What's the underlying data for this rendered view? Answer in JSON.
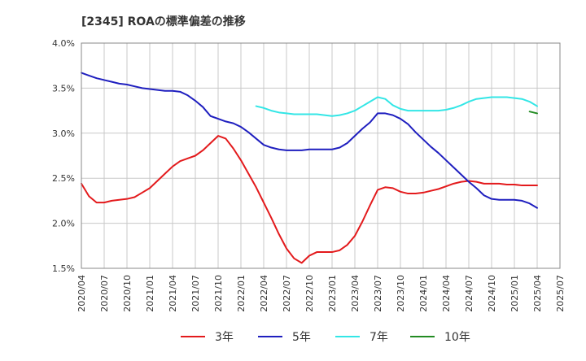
{
  "chart_data": {
    "type": "line",
    "title": "[2345]  ROAの標準偏差の推移",
    "xlabel": "",
    "ylabel": "",
    "x_ticks": [
      "2020/04",
      "2020/07",
      "2020/10",
      "2021/01",
      "2021/04",
      "2021/07",
      "2021/10",
      "2022/01",
      "2022/04",
      "2022/07",
      "2022/10",
      "2023/01",
      "2023/04",
      "2023/07",
      "2023/10",
      "2024/01",
      "2024/04",
      "2024/07",
      "2024/10",
      "2025/01",
      "2025/04",
      "2025/07"
    ],
    "y_ticks": [
      "1.5%",
      "2.0%",
      "2.5%",
      "3.0%",
      "3.5%",
      "4.0%"
    ],
    "ylim": [
      1.5,
      4.0
    ],
    "grid": true,
    "legend_position": "bottom",
    "colors": {
      "3y": "#e31a1c",
      "5y": "#1f1fbf",
      "7y": "#33e6e6",
      "10y": "#228b22"
    },
    "series": [
      {
        "name": "3年",
        "key": "3y",
        "points": [
          [
            "2020/04",
            2.44
          ],
          [
            "2020/05",
            2.3
          ],
          [
            "2020/06",
            2.23
          ],
          [
            "2020/07",
            2.23
          ],
          [
            "2020/08",
            2.25
          ],
          [
            "2020/09",
            2.26
          ],
          [
            "2020/10",
            2.27
          ],
          [
            "2020/11",
            2.29
          ],
          [
            "2020/12",
            2.34
          ],
          [
            "2021/01",
            2.39
          ],
          [
            "2021/02",
            2.47
          ],
          [
            "2021/03",
            2.55
          ],
          [
            "2021/04",
            2.63
          ],
          [
            "2021/05",
            2.69
          ],
          [
            "2021/06",
            2.72
          ],
          [
            "2021/07",
            2.75
          ],
          [
            "2021/08",
            2.81
          ],
          [
            "2021/09",
            2.89
          ],
          [
            "2021/10",
            2.97
          ],
          [
            "2021/11",
            2.94
          ],
          [
            "2021/12",
            2.83
          ],
          [
            "2022/01",
            2.7
          ],
          [
            "2022/02",
            2.55
          ],
          [
            "2022/03",
            2.4
          ],
          [
            "2022/04",
            2.23
          ],
          [
            "2022/05",
            2.06
          ],
          [
            "2022/06",
            1.88
          ],
          [
            "2022/07",
            1.72
          ],
          [
            "2022/08",
            1.61
          ],
          [
            "2022/09",
            1.56
          ],
          [
            "2022/10",
            1.64
          ],
          [
            "2022/11",
            1.68
          ],
          [
            "2022/12",
            1.68
          ],
          [
            "2023/01",
            1.68
          ],
          [
            "2023/02",
            1.7
          ],
          [
            "2023/03",
            1.76
          ],
          [
            "2023/04",
            1.86
          ],
          [
            "2023/05",
            2.02
          ],
          [
            "2023/06",
            2.2
          ],
          [
            "2023/07",
            2.37
          ],
          [
            "2023/08",
            2.4
          ],
          [
            "2023/09",
            2.39
          ],
          [
            "2023/10",
            2.35
          ],
          [
            "2023/11",
            2.33
          ],
          [
            "2023/12",
            2.33
          ],
          [
            "2024/01",
            2.34
          ],
          [
            "2024/02",
            2.36
          ],
          [
            "2024/03",
            2.38
          ],
          [
            "2024/04",
            2.41
          ],
          [
            "2024/05",
            2.44
          ],
          [
            "2024/06",
            2.46
          ],
          [
            "2024/07",
            2.47
          ],
          [
            "2024/08",
            2.46
          ],
          [
            "2024/09",
            2.44
          ],
          [
            "2024/10",
            2.44
          ],
          [
            "2024/11",
            2.44
          ],
          [
            "2024/12",
            2.43
          ],
          [
            "2025/01",
            2.43
          ],
          [
            "2025/02",
            2.42
          ],
          [
            "2025/03",
            2.42
          ],
          [
            "2025/04",
            2.42
          ]
        ]
      },
      {
        "name": "5年",
        "key": "5y",
        "points": [
          [
            "2020/04",
            3.67
          ],
          [
            "2020/05",
            3.64
          ],
          [
            "2020/06",
            3.61
          ],
          [
            "2020/07",
            3.59
          ],
          [
            "2020/08",
            3.57
          ],
          [
            "2020/09",
            3.55
          ],
          [
            "2020/10",
            3.54
          ],
          [
            "2020/11",
            3.52
          ],
          [
            "2020/12",
            3.5
          ],
          [
            "2021/01",
            3.49
          ],
          [
            "2021/02",
            3.48
          ],
          [
            "2021/03",
            3.47
          ],
          [
            "2021/04",
            3.47
          ],
          [
            "2021/05",
            3.46
          ],
          [
            "2021/06",
            3.42
          ],
          [
            "2021/07",
            3.36
          ],
          [
            "2021/08",
            3.29
          ],
          [
            "2021/09",
            3.19
          ],
          [
            "2021/10",
            3.16
          ],
          [
            "2021/11",
            3.13
          ],
          [
            "2021/12",
            3.11
          ],
          [
            "2022/01",
            3.07
          ],
          [
            "2022/02",
            3.01
          ],
          [
            "2022/03",
            2.94
          ],
          [
            "2022/04",
            2.87
          ],
          [
            "2022/05",
            2.84
          ],
          [
            "2022/06",
            2.82
          ],
          [
            "2022/07",
            2.81
          ],
          [
            "2022/08",
            2.81
          ],
          [
            "2022/09",
            2.81
          ],
          [
            "2022/10",
            2.82
          ],
          [
            "2022/11",
            2.82
          ],
          [
            "2022/12",
            2.82
          ],
          [
            "2023/01",
            2.82
          ],
          [
            "2023/02",
            2.84
          ],
          [
            "2023/03",
            2.89
          ],
          [
            "2023/04",
            2.97
          ],
          [
            "2023/05",
            3.05
          ],
          [
            "2023/06",
            3.12
          ],
          [
            "2023/07",
            3.22
          ],
          [
            "2023/08",
            3.22
          ],
          [
            "2023/09",
            3.2
          ],
          [
            "2023/10",
            3.16
          ],
          [
            "2023/11",
            3.1
          ],
          [
            "2023/12",
            3.01
          ],
          [
            "2024/01",
            2.93
          ],
          [
            "2024/02",
            2.85
          ],
          [
            "2024/03",
            2.78
          ],
          [
            "2024/04",
            2.7
          ],
          [
            "2024/05",
            2.62
          ],
          [
            "2024/06",
            2.54
          ],
          [
            "2024/07",
            2.46
          ],
          [
            "2024/08",
            2.39
          ],
          [
            "2024/09",
            2.31
          ],
          [
            "2024/10",
            2.27
          ],
          [
            "2024/11",
            2.26
          ],
          [
            "2024/12",
            2.26
          ],
          [
            "2025/01",
            2.26
          ],
          [
            "2025/02",
            2.25
          ],
          [
            "2025/03",
            2.22
          ],
          [
            "2025/04",
            2.17
          ]
        ]
      },
      {
        "name": "7年",
        "key": "7y",
        "points": [
          [
            "2022/03",
            3.3
          ],
          [
            "2022/04",
            3.28
          ],
          [
            "2022/05",
            3.25
          ],
          [
            "2022/06",
            3.23
          ],
          [
            "2022/07",
            3.22
          ],
          [
            "2022/08",
            3.21
          ],
          [
            "2022/09",
            3.21
          ],
          [
            "2022/10",
            3.21
          ],
          [
            "2022/11",
            3.21
          ],
          [
            "2022/12",
            3.2
          ],
          [
            "2023/01",
            3.19
          ],
          [
            "2023/02",
            3.2
          ],
          [
            "2023/03",
            3.22
          ],
          [
            "2023/04",
            3.25
          ],
          [
            "2023/05",
            3.3
          ],
          [
            "2023/06",
            3.35
          ],
          [
            "2023/07",
            3.4
          ],
          [
            "2023/08",
            3.38
          ],
          [
            "2023/09",
            3.31
          ],
          [
            "2023/10",
            3.27
          ],
          [
            "2023/11",
            3.25
          ],
          [
            "2023/12",
            3.25
          ],
          [
            "2024/01",
            3.25
          ],
          [
            "2024/02",
            3.25
          ],
          [
            "2024/03",
            3.25
          ],
          [
            "2024/04",
            3.26
          ],
          [
            "2024/05",
            3.28
          ],
          [
            "2024/06",
            3.31
          ],
          [
            "2024/07",
            3.35
          ],
          [
            "2024/08",
            3.38
          ],
          [
            "2024/09",
            3.39
          ],
          [
            "2024/10",
            3.4
          ],
          [
            "2024/11",
            3.4
          ],
          [
            "2024/12",
            3.4
          ],
          [
            "2025/01",
            3.39
          ],
          [
            "2025/02",
            3.38
          ],
          [
            "2025/03",
            3.35
          ],
          [
            "2025/04",
            3.3
          ]
        ]
      },
      {
        "name": "10年",
        "key": "10y",
        "points": [
          [
            "2025/03",
            3.24
          ],
          [
            "2025/04",
            3.22
          ]
        ]
      }
    ]
  }
}
